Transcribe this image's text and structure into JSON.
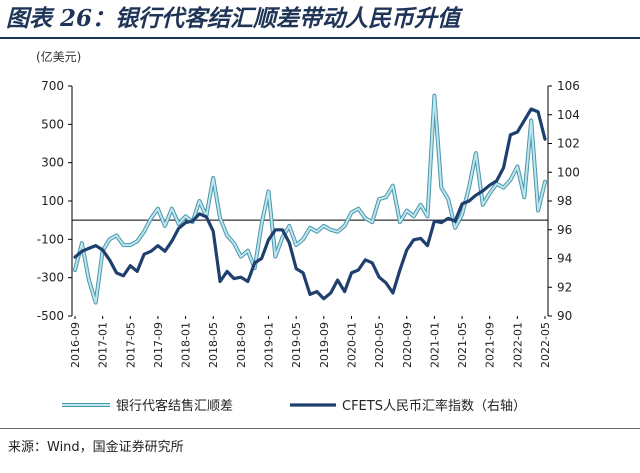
{
  "header": {
    "title": "图表 26：银行代客结汇顺差带动人民币升值",
    "unit": "(亿美元)"
  },
  "footer": {
    "source": "来源：Wind，国金证券研究所"
  },
  "colors": {
    "title": "#1f3558",
    "series_surplus": "#7fc8d8",
    "series_cfets": "#1f3f6e",
    "axis": "#000000"
  },
  "chart_data": {
    "type": "line",
    "title": "",
    "xlabel": "",
    "ylabel": "(亿美元)",
    "ylim": [
      -500,
      700
    ],
    "y2lim": [
      90,
      106
    ],
    "yticks": [
      -500,
      -300,
      -100,
      100,
      300,
      500,
      700
    ],
    "y2ticks": [
      90,
      92,
      94,
      96,
      98,
      100,
      102,
      104,
      106
    ],
    "x_tick_labels": [
      "2016-09",
      "2017-01",
      "2017-05",
      "2017-09",
      "2018-01",
      "2018-05",
      "2018-09",
      "2019-01",
      "2019-05",
      "2019-09",
      "2020-01",
      "2020-05",
      "2020-09",
      "2021-01",
      "2021-05",
      "2021-09",
      "2022-01",
      "2022-05"
    ],
    "grid": false,
    "legend_position": "bottom",
    "legend": [
      "银行代客结售汇顺差",
      "CFETS人民币汇率指数（右轴）"
    ],
    "x": [
      "2016-09",
      "2016-10",
      "2016-11",
      "2016-12",
      "2017-01",
      "2017-02",
      "2017-03",
      "2017-04",
      "2017-05",
      "2017-06",
      "2017-07",
      "2017-08",
      "2017-09",
      "2017-10",
      "2017-11",
      "2017-12",
      "2018-01",
      "2018-02",
      "2018-03",
      "2018-04",
      "2018-05",
      "2018-06",
      "2018-07",
      "2018-08",
      "2018-09",
      "2018-10",
      "2018-11",
      "2018-12",
      "2019-01",
      "2019-02",
      "2019-03",
      "2019-04",
      "2019-05",
      "2019-06",
      "2019-07",
      "2019-08",
      "2019-09",
      "2019-10",
      "2019-11",
      "2019-12",
      "2020-01",
      "2020-02",
      "2020-03",
      "2020-04",
      "2020-05",
      "2020-06",
      "2020-07",
      "2020-08",
      "2020-09",
      "2020-10",
      "2020-11",
      "2020-12",
      "2021-01",
      "2021-02",
      "2021-03",
      "2021-04",
      "2021-05",
      "2021-06",
      "2021-07",
      "2021-08",
      "2021-09",
      "2021-10",
      "2021-11",
      "2021-12",
      "2022-01",
      "2022-02",
      "2022-03",
      "2022-04",
      "2022-05"
    ],
    "series": [
      {
        "name": "银行代客结售汇顺差",
        "axis": "left",
        "values": [
          -260,
          -120,
          -310,
          -430,
          -160,
          -100,
          -80,
          -130,
          -130,
          -110,
          -60,
          10,
          60,
          -30,
          60,
          -20,
          20,
          -10,
          100,
          20,
          220,
          10,
          -80,
          -120,
          -190,
          -160,
          -250,
          -20,
          150,
          -190,
          -90,
          -30,
          -130,
          -100,
          -40,
          -60,
          -30,
          -50,
          -60,
          -30,
          40,
          60,
          10,
          -10,
          110,
          120,
          180,
          -10,
          50,
          20,
          80,
          20,
          650,
          170,
          110,
          -40,
          30,
          170,
          350,
          80,
          140,
          190,
          170,
          210,
          280,
          120,
          520,
          50,
          200
        ]
      },
      {
        "name": "CFETS人民币汇率指数（右轴）",
        "axis": "right",
        "values": [
          94.1,
          94.5,
          94.7,
          94.9,
          94.6,
          93.9,
          93.0,
          92.8,
          93.5,
          93.1,
          94.3,
          94.5,
          94.9,
          94.5,
          95.2,
          96.1,
          96.5,
          96.6,
          97.1,
          96.9,
          95.9,
          92.4,
          93.1,
          92.6,
          92.7,
          92.4,
          93.7,
          94.0,
          95.3,
          96.0,
          96.0,
          95.1,
          93.3,
          93.0,
          91.5,
          91.7,
          91.2,
          91.6,
          92.5,
          91.7,
          93.0,
          93.2,
          93.9,
          93.7,
          92.7,
          92.3,
          91.6,
          93.2,
          94.6,
          95.3,
          95.4,
          94.9,
          96.6,
          96.5,
          96.8,
          96.6,
          97.8,
          98.0,
          98.4,
          98.7,
          99.1,
          99.4,
          100.3,
          102.6,
          102.8,
          103.6,
          104.4,
          104.2,
          102.3
        ]
      }
    ]
  }
}
